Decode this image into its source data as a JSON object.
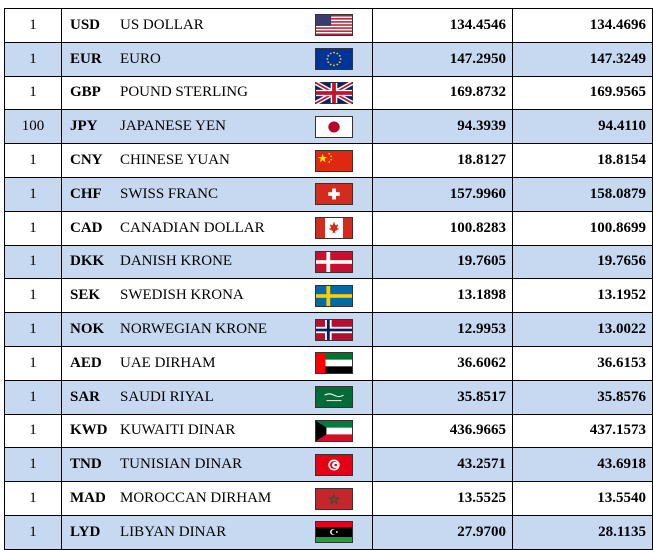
{
  "rates": [
    {
      "unit": "1",
      "code": "USD",
      "name": "US DOLLAR",
      "flag": "us-flag",
      "buy": "134.4546",
      "sell": "134.4696"
    },
    {
      "unit": "1",
      "code": "EUR",
      "name": "EURO",
      "flag": "eu-flag",
      "buy": "147.2950",
      "sell": "147.3249"
    },
    {
      "unit": "1",
      "code": "GBP",
      "name": "POUND STERLING",
      "flag": "uk-flag",
      "buy": "169.8732",
      "sell": "169.9565"
    },
    {
      "unit": "100",
      "code": "JPY",
      "name": "JAPANESE YEN",
      "flag": "jp-flag",
      "buy": "94.3939",
      "sell": "94.4110"
    },
    {
      "unit": "1",
      "code": "CNY",
      "name": "CHINESE YUAN",
      "flag": "cn-flag",
      "buy": "18.8127",
      "sell": "18.8154"
    },
    {
      "unit": "1",
      "code": "CHF",
      "name": "SWISS FRANC",
      "flag": "ch-flag",
      "buy": "157.9960",
      "sell": "158.0879"
    },
    {
      "unit": "1",
      "code": "CAD",
      "name": "CANADIAN DOLLAR",
      "flag": "ca-flag",
      "buy": "100.8283",
      "sell": "100.8699"
    },
    {
      "unit": "1",
      "code": "DKK",
      "name": "DANISH KRONE",
      "flag": "dk-flag",
      "buy": "19.7605",
      "sell": "19.7656"
    },
    {
      "unit": "1",
      "code": "SEK",
      "name": "SWEDISH KRONA",
      "flag": "se-flag",
      "buy": "13.1898",
      "sell": "13.1952"
    },
    {
      "unit": "1",
      "code": "NOK",
      "name": "NORWEGIAN KRONE",
      "flag": "no-flag",
      "buy": "12.9953",
      "sell": "13.0022"
    },
    {
      "unit": "1",
      "code": "AED",
      "name": "UAE DIRHAM",
      "flag": "ae-flag",
      "buy": "36.6062",
      "sell": "36.6153"
    },
    {
      "unit": "1",
      "code": "SAR",
      "name": "SAUDI RIYAL",
      "flag": "sa-flag",
      "buy": "35.8517",
      "sell": "35.8576"
    },
    {
      "unit": "1",
      "code": "KWD",
      "name": "KUWAITI DINAR",
      "flag": "kw-flag",
      "buy": "436.9665",
      "sell": "437.1573"
    },
    {
      "unit": "1",
      "code": "TND",
      "name": "TUNISIAN DINAR",
      "flag": "tn-flag",
      "buy": "43.2571",
      "sell": "43.6918"
    },
    {
      "unit": "1",
      "code": "MAD",
      "name": "MOROCCAN DIRHAM",
      "flag": "ma-flag",
      "buy": "13.5525",
      "sell": "13.5540"
    },
    {
      "unit": "1",
      "code": "LYD",
      "name": "LIBYAN DINAR",
      "flag": "ly-flag",
      "buy": "27.9700",
      "sell": "28.1135"
    }
  ],
  "colors": {
    "alt_row": "#c6d9f1",
    "border": "#000000"
  }
}
